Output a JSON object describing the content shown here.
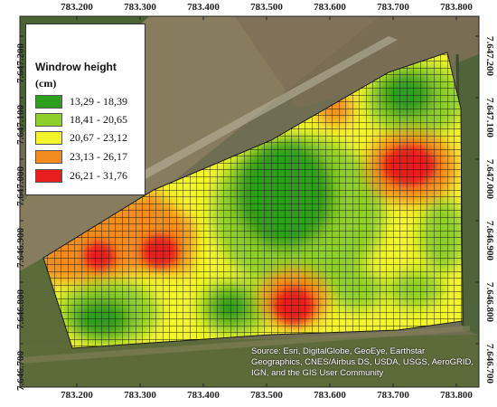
{
  "map": {
    "x_ticks_top": [
      "783.200",
      "783.300",
      "783.400",
      "783.500",
      "783.600",
      "783.700",
      "783.800"
    ],
    "x_ticks_bottom": [
      "783.200",
      "783.300",
      "783.400",
      "783.500",
      "783.600",
      "783.700",
      "783.800"
    ],
    "y_ticks_left": [
      "7.647.200",
      "7.647.100",
      "7.647.000",
      "7.646.900",
      "7.646.800",
      "7.646.700"
    ],
    "y_ticks_right": [
      "7.647.200",
      "7.647.100",
      "7.647.000",
      "7.646.900",
      "7.646.800",
      "7.646.700"
    ],
    "attribution": "Source: Esri, DigitalGlobe, GeoEye, Earthstar Geographics, CNES/Airbus DS, USDA, USGS, AeroGRID, IGN, and the GIS User Community"
  },
  "legend": {
    "title": "Windrow height",
    "unit": "(cm)",
    "classes": [
      {
        "label": "13,29 - 18,39",
        "color": "#2e9e1f"
      },
      {
        "label": "18,41 - 20,65",
        "color": "#8fcf2a"
      },
      {
        "label": "20,67 - 23,12",
        "color": "#f4f42c"
      },
      {
        "label": "23,13 - 26,17",
        "color": "#f28c1e"
      },
      {
        "label": "26,21 - 31,76",
        "color": "#e81d1d"
      }
    ]
  },
  "colors": {
    "imagery_bg": "#6f7150",
    "grid_line": "#1a1a1a"
  }
}
